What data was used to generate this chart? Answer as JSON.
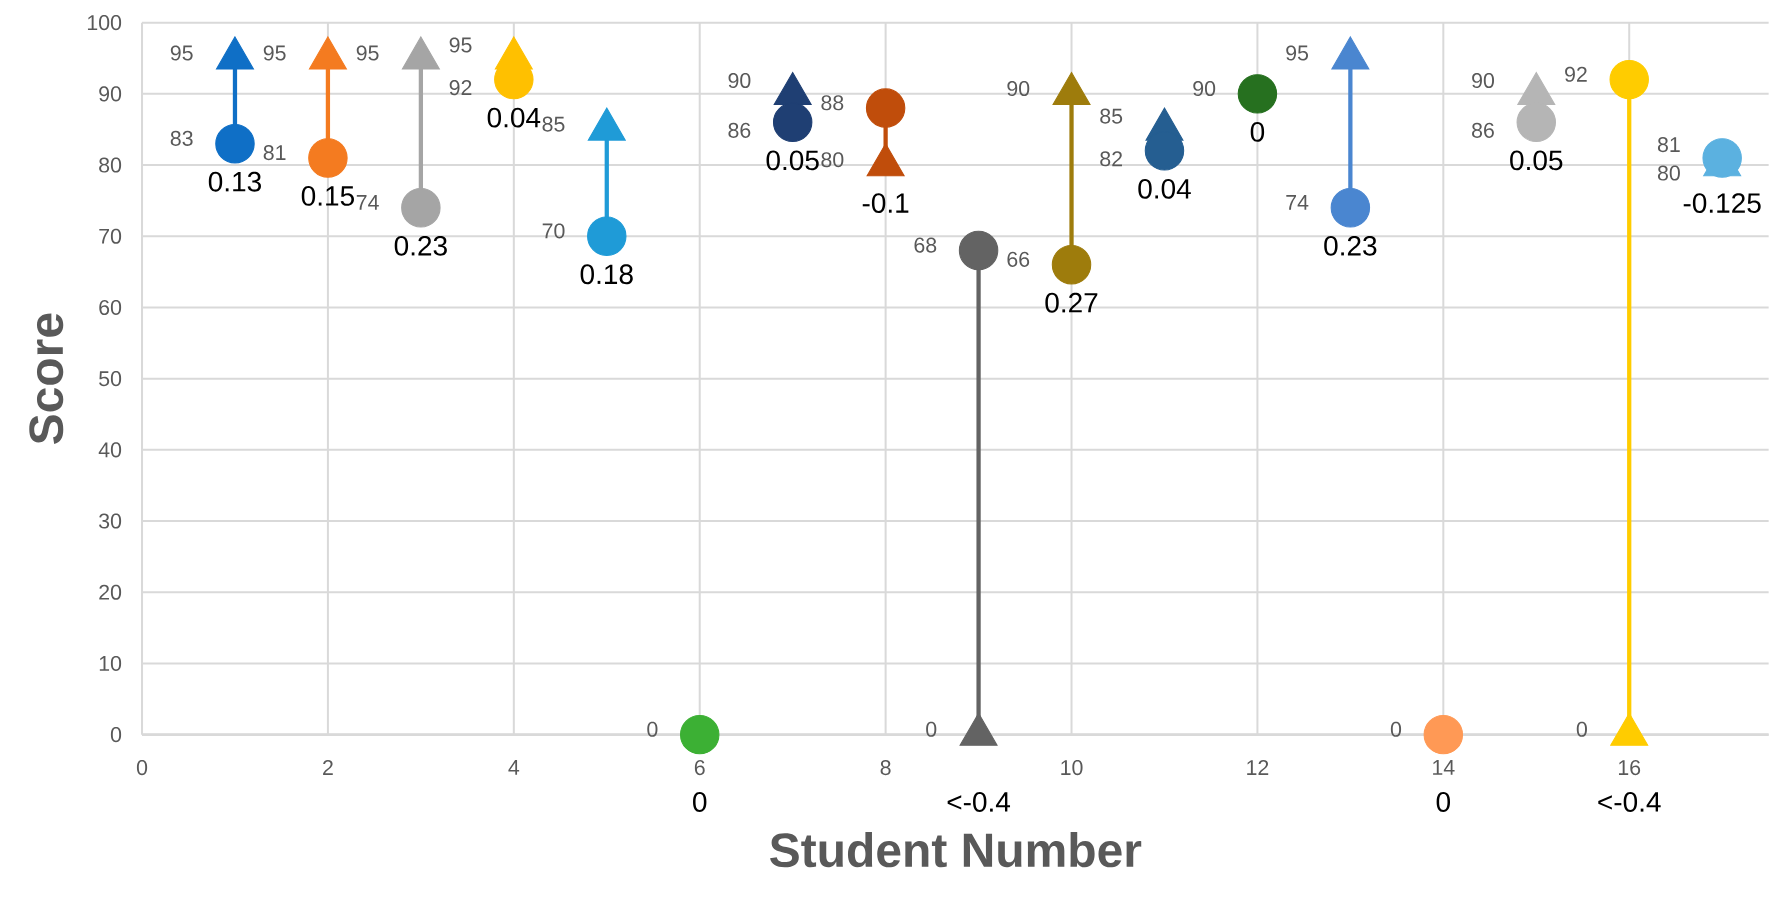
{
  "chart_data": {
    "type": "scatter",
    "xlabel": "Student Number",
    "ylabel": "Score",
    "x": [
      1,
      2,
      3,
      4,
      5,
      6,
      7,
      8,
      9,
      10,
      11,
      12,
      13,
      14,
      15,
      16,
      17
    ],
    "series": [
      {
        "marker": "circle",
        "values": [
          83,
          81,
          74,
          92,
          70,
          0,
          86,
          88,
          68,
          66,
          82,
          90,
          74,
          0,
          86,
          92,
          81
        ],
        "value_labels": [
          "83",
          "81",
          "74",
          "92",
          "70",
          "0",
          "86",
          "88",
          "68",
          "66",
          "82",
          "90",
          "74",
          "0",
          "86",
          "92",
          "81"
        ],
        "colors": [
          "#0f6fc6",
          "#f47b20",
          "#a5a5a5",
          "#ffc000",
          "#1f9bd7",
          "#3cb034",
          "#1f3f73",
          "#c04d0b",
          "#636363",
          "#9e7c0c",
          "#255e91",
          "#26701f",
          "#4a86d0",
          "#ff9955",
          "#b5b5b5",
          "#ffcc00",
          "#5bb1e0"
        ]
      },
      {
        "marker": "triangle",
        "values": [
          95,
          95,
          95,
          95,
          85,
          null,
          90,
          80,
          0,
          90,
          85,
          null,
          95,
          null,
          90,
          0,
          80
        ],
        "value_labels": [
          "95",
          "95",
          "95",
          "95",
          "85",
          null,
          "90",
          "80",
          "0",
          "90",
          "85",
          null,
          "95",
          null,
          "90",
          "0",
          "80"
        ],
        "colors": [
          "#0f6fc6",
          "#f47b20",
          "#a5a5a5",
          "#ffc000",
          "#1f9bd7",
          "#3cb034",
          "#1f3f73",
          "#c04d0b",
          "#636363",
          "#9e7c0c",
          "#255e91",
          "#26701f",
          "#4a86d0",
          "#ff9955",
          "#b5b5b5",
          "#ffcc00",
          "#5bb1e0"
        ]
      },
      {
        "type": "line",
        "x": [
          1,
          1
        ],
        "values": [
          83,
          95
        ],
        "value_labels": [
          null,
          null
        ],
        "color": "#0f6fc6"
      },
      {
        "type": "line",
        "x": [
          2,
          2
        ],
        "values": [
          81,
          95
        ],
        "value_labels": [
          null,
          null
        ],
        "color": "#f47b20"
      },
      {
        "type": "line",
        "x": [
          3,
          3
        ],
        "values": [
          74,
          95
        ],
        "value_labels": [
          null,
          null
        ],
        "color": "#a5a5a5"
      },
      {
        "type": "line",
        "x": [
          5,
          5
        ],
        "values": [
          70,
          85
        ],
        "value_labels": [
          null,
          null
        ],
        "color": "#1f9bd7"
      },
      {
        "type": "line",
        "x": [
          8,
          8
        ],
        "values": [
          88,
          80
        ],
        "value_labels": [
          null,
          null
        ],
        "color": "#c04d0b"
      },
      {
        "type": "line",
        "x": [
          9,
          9
        ],
        "values": [
          68,
          0
        ],
        "value_labels": [
          null,
          null
        ],
        "color": "#636363"
      },
      {
        "type": "line",
        "x": [
          10,
          10
        ],
        "values": [
          66,
          90
        ],
        "value_labels": [
          null,
          null
        ],
        "color": "#9e7c0c"
      },
      {
        "type": "line",
        "x": [
          13,
          13
        ],
        "values": [
          74,
          95
        ],
        "value_labels": [
          null,
          null
        ],
        "color": "#4a86d0"
      },
      {
        "type": "line",
        "x": [
          16,
          16
        ],
        "values": [
          92,
          0
        ],
        "value_labels": [
          null,
          null
        ],
        "color": "#ffcc00"
      }
    ],
    "annotations": [
      {
        "text": "0.13",
        "x": 1,
        "y": 83
      },
      {
        "text": "0.15",
        "x": 2,
        "y": 81
      },
      {
        "text": "0.23",
        "x": 3,
        "y": 74
      },
      {
        "text": "0.04",
        "x": 4,
        "y": 92
      },
      {
        "text": "0.18",
        "x": 5,
        "y": 70
      },
      {
        "text": "0",
        "x": 6,
        "y": 0
      },
      {
        "text": "0.05",
        "x": 7,
        "y": 86
      },
      {
        "text": "-0.1",
        "x": 8,
        "y": 80
      },
      {
        "text": "<-0.4",
        "x": 9,
        "y": 0
      },
      {
        "text": "0.27",
        "x": 10,
        "y": 66
      },
      {
        "text": "0.04",
        "x": 11,
        "y": 82
      },
      {
        "text": "0",
        "x": 12,
        "y": 90
      },
      {
        "text": "0.23",
        "x": 13,
        "y": 74
      },
      {
        "text": "0",
        "x": 14,
        "y": 0
      },
      {
        "text": "0.05",
        "x": 15,
        "y": 86
      },
      {
        "text": "<-0.4",
        "x": 16,
        "y": 0
      },
      {
        "text": "-0.125",
        "x": 17,
        "y": 80
      }
    ],
    "xlim": [
      0,
      17.5
    ],
    "xticks": [
      0,
      2,
      4,
      6,
      8,
      10,
      12,
      14,
      16
    ],
    "ylim": [
      0,
      100
    ],
    "yticks": [
      0,
      10,
      20,
      30,
      40,
      50,
      60,
      70,
      80,
      90,
      100
    ],
    "data_labels": true,
    "grid": true
  }
}
